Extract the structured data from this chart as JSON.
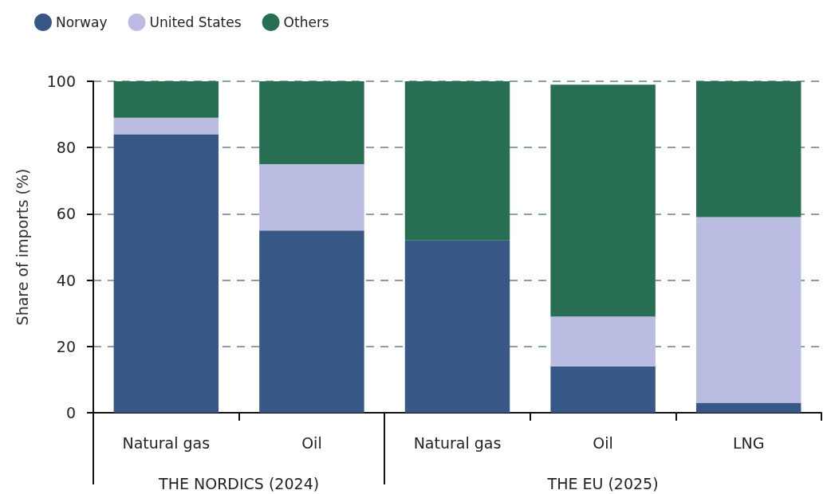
{
  "chart_data": {
    "type": "bar",
    "stacked": true,
    "categories": [
      "Natural gas",
      "Oil",
      "Natural gas",
      "Oil",
      "LNG"
    ],
    "series": [
      {
        "name": "Norway",
        "color": "#375886",
        "values": [
          84,
          55,
          52,
          14,
          3
        ]
      },
      {
        "name": "United States",
        "color": "#babce1",
        "values": [
          5,
          20,
          0,
          15,
          56
        ]
      },
      {
        "name": "Others",
        "color": "#276e52",
        "values": [
          11,
          25,
          48,
          70,
          41
        ]
      }
    ],
    "ylabel": "Share of imports (%)",
    "ylim": [
      0,
      100
    ],
    "yticks": [
      0,
      20,
      40,
      60,
      80,
      100
    ],
    "grid": "y",
    "legend": "top left",
    "annotations": [
      "THE NORDICS (2024)",
      "THE EU (2025)"
    ]
  }
}
